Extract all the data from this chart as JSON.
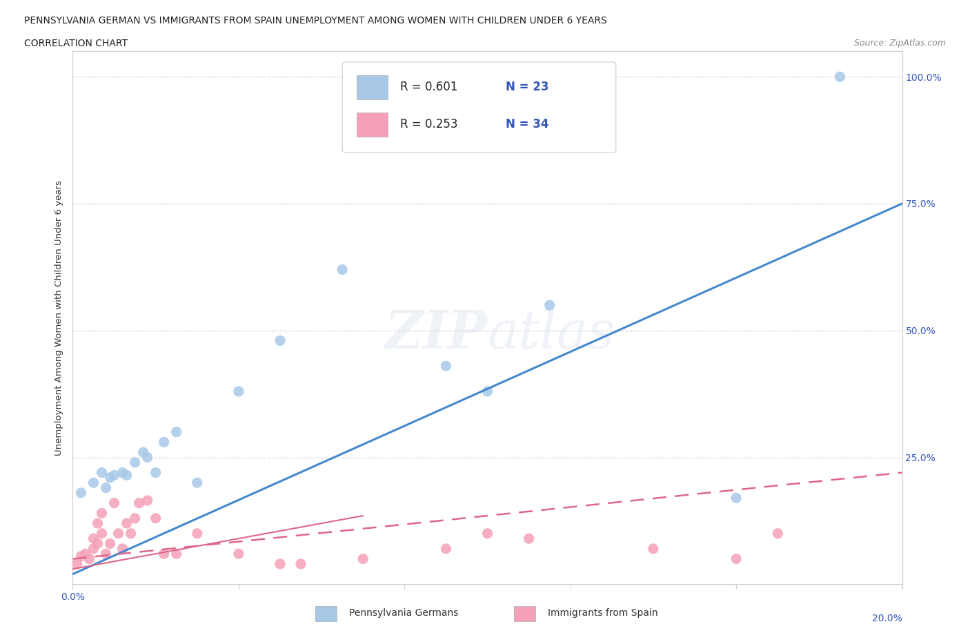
{
  "title_line1": "PENNSYLVANIA GERMAN VS IMMIGRANTS FROM SPAIN UNEMPLOYMENT AMONG WOMEN WITH CHILDREN UNDER 6 YEARS",
  "title_line2": "CORRELATION CHART",
  "source": "Source: ZipAtlas.com",
  "ylabel": "Unemployment Among Women with Children Under 6 years",
  "xmin": 0.0,
  "xmax": 0.2,
  "ymin": 0.0,
  "ymax": 1.05,
  "x_ticks": [
    0.0,
    0.04,
    0.08,
    0.12,
    0.16,
    0.2
  ],
  "y_ticks": [
    0.0,
    0.25,
    0.5,
    0.75,
    1.0
  ],
  "y_tick_labels": [
    "",
    "25.0%",
    "50.0%",
    "75.0%",
    "100.0%"
  ],
  "blue_color": "#a8c8e8",
  "pink_color": "#f4a0b8",
  "blue_line_color": "#4488cc",
  "pink_line_color": "#dd6688",
  "blue_scatter_x": [
    0.002,
    0.005,
    0.007,
    0.008,
    0.009,
    0.01,
    0.012,
    0.013,
    0.015,
    0.017,
    0.018,
    0.02,
    0.022,
    0.025,
    0.03,
    0.04,
    0.05,
    0.065,
    0.09,
    0.1,
    0.115,
    0.16,
    0.185
  ],
  "blue_scatter_y": [
    0.18,
    0.2,
    0.22,
    0.19,
    0.21,
    0.215,
    0.22,
    0.215,
    0.24,
    0.26,
    0.25,
    0.22,
    0.28,
    0.3,
    0.2,
    0.38,
    0.48,
    0.62,
    0.43,
    0.38,
    0.55,
    0.17,
    1.0
  ],
  "pink_scatter_x": [
    0.001,
    0.002,
    0.003,
    0.004,
    0.005,
    0.005,
    0.006,
    0.006,
    0.007,
    0.007,
    0.008,
    0.009,
    0.01,
    0.011,
    0.012,
    0.013,
    0.014,
    0.015,
    0.016,
    0.018,
    0.02,
    0.022,
    0.025,
    0.03,
    0.04,
    0.05,
    0.055,
    0.07,
    0.09,
    0.1,
    0.11,
    0.14,
    0.16,
    0.17
  ],
  "pink_scatter_y": [
    0.04,
    0.055,
    0.06,
    0.05,
    0.07,
    0.09,
    0.08,
    0.12,
    0.1,
    0.14,
    0.06,
    0.08,
    0.16,
    0.1,
    0.07,
    0.12,
    0.1,
    0.13,
    0.16,
    0.165,
    0.13,
    0.06,
    0.06,
    0.1,
    0.06,
    0.04,
    0.04,
    0.05,
    0.07,
    0.1,
    0.09,
    0.07,
    0.05,
    0.1
  ],
  "grid_color": "#cccccc",
  "background_color": "#ffffff",
  "plot_bg_color": "#ffffff",
  "blue_line_x0": 0.0,
  "blue_line_y0": 0.02,
  "blue_line_x1": 0.2,
  "blue_line_y1": 0.75,
  "pink_line_x0": 0.0,
  "pink_line_y0": 0.05,
  "pink_line_x1": 0.2,
  "pink_line_y1": 0.22
}
